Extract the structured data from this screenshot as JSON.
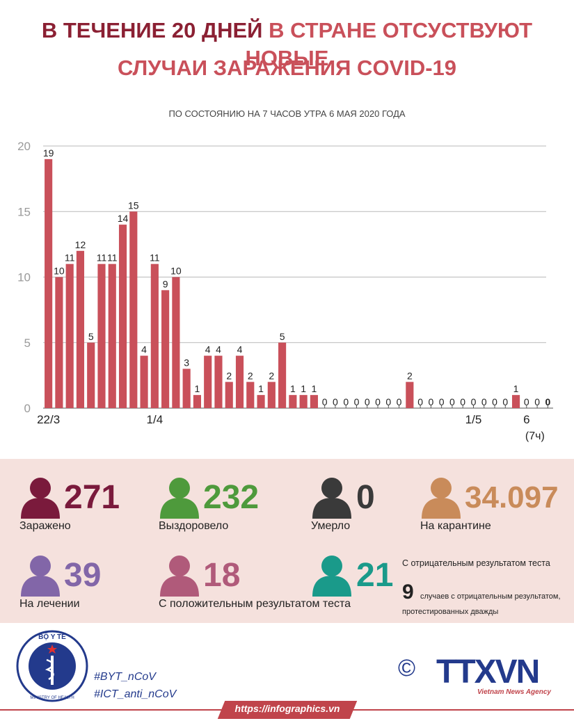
{
  "header": {
    "title_part1": "В ТЕЧЕНИЕ 20 ДНЕЙ",
    "title_part2": "В СТРАНЕ ОТСУСТВУЮТ НОВЫЕ",
    "title_line2": "СЛУЧАИ ЗАРАЖЕНИЯ COVID-19",
    "subtitle": "ПО СОСТОЯНИЮ НА 7 ЧАСОВ УТРА 6 МАЯ 2020 ГОДА"
  },
  "chart_data": {
    "type": "bar",
    "title": "",
    "xlabel": "",
    "ylabel": "",
    "ylim": [
      0,
      20
    ],
    "yticks": [
      0,
      5,
      10,
      15,
      20
    ],
    "grid": true,
    "bar_color": "#c9505a",
    "values": [
      19,
      10,
      11,
      12,
      5,
      11,
      11,
      14,
      15,
      4,
      11,
      9,
      10,
      3,
      1,
      4,
      4,
      2,
      4,
      2,
      1,
      2,
      5,
      1,
      1,
      1,
      0,
      0,
      0,
      0,
      0,
      0,
      0,
      0,
      2,
      0,
      0,
      0,
      0,
      0,
      0,
      0,
      0,
      0,
      1,
      0,
      0,
      0
    ],
    "x_tick_labels": [
      {
        "index": 0,
        "label": "22/3"
      },
      {
        "index": 10,
        "label": "1/4"
      },
      {
        "index": 40,
        "label": "1/5"
      },
      {
        "index": 45,
        "label": "6"
      }
    ],
    "last_note": "(7ч)"
  },
  "stats": {
    "infected": {
      "value": "271",
      "label": "Заражено",
      "color": "#7a1a3c"
    },
    "recovered": {
      "value": "232",
      "label": "Выздоровело",
      "color": "#4e9a3c"
    },
    "deaths": {
      "value": "0",
      "label": "Умерло",
      "color": "#3a3a3a"
    },
    "quarantine": {
      "value": "34.097",
      "label": "На карантине",
      "color": "#c98b5a"
    },
    "treatment": {
      "value": "39",
      "label": "На лечении",
      "color": "#8266a8"
    },
    "positive": {
      "value": "18",
      "label": "С положительным результатом теста",
      "color": "#b05a7a"
    },
    "negative": {
      "value": "21",
      "title": "С отрицательным результатом теста",
      "color": "#1a9a8a"
    },
    "twice_negative": {
      "value": "9",
      "text": "случаев с отрицательным результатом,",
      "text2": "протестированных дважды"
    }
  },
  "footer": {
    "logo_text_top": "BỘ Y TẾ",
    "logo_text_bottom": "MINISTRY OF HEALTH",
    "hashtag1": "#BYT_nCoV",
    "hashtag2": "#ICT_anti_nCoV",
    "agency_logo": "TTXVN",
    "agency_name": "Vietnam News Agency",
    "copyright": "©",
    "url": "https://infographics.vn"
  }
}
